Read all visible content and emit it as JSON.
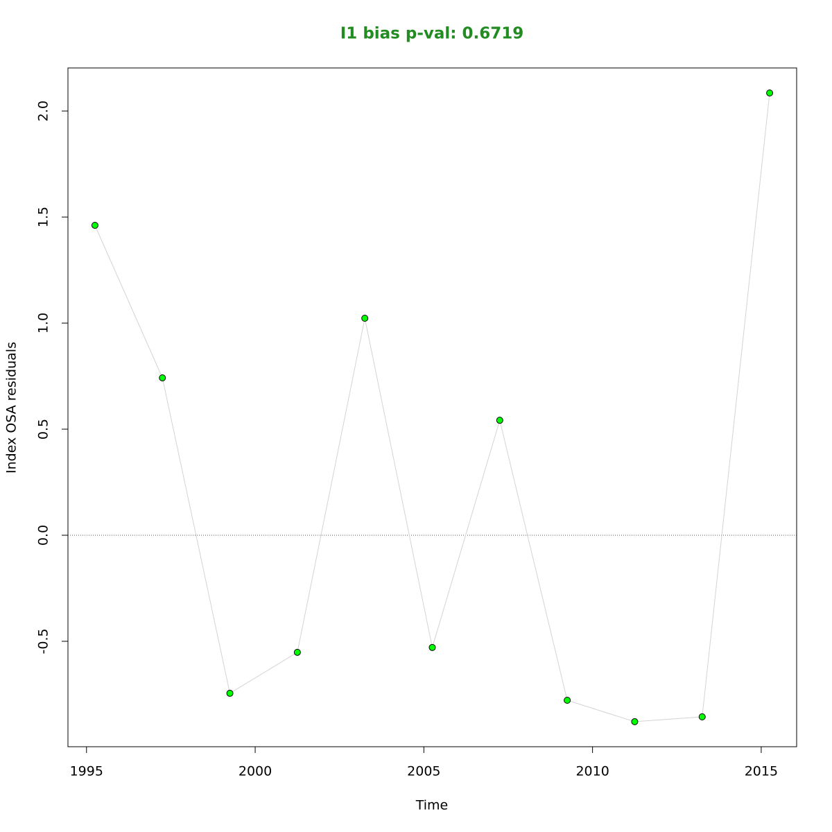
{
  "chart_data": {
    "type": "line",
    "title": "I1 bias p-val: 0.6719",
    "x_label": "Time",
    "y_label": "Index OSA residuals",
    "x": [
      1995.25,
      1997.25,
      1999.25,
      2001.25,
      2003.25,
      2005.25,
      2007.25,
      2009.25,
      2011.25,
      2013.25,
      2015.25
    ],
    "values": [
      1.461,
      0.742,
      -0.745,
      -0.552,
      1.023,
      -0.529,
      0.542,
      -0.778,
      -0.879,
      -0.856,
      2.085
    ],
    "line_color": "#d3d3d3",
    "point_color": "#00ff00",
    "title_color": "#228b22",
    "reference_line": 0,
    "xlim": [
      1994.45,
      2016.05
    ],
    "xticks": [
      1995,
      2000,
      2005,
      2010,
      2015
    ],
    "ylim": [
      -0.997,
      2.203
    ],
    "yticks": [
      -0.5,
      {
        "value": 0,
        "label": "0.0"
      },
      0.5,
      {
        "value": 1,
        "label": "1.0"
      },
      1.5,
      {
        "value": 2,
        "label": "2.0"
      }
    ]
  }
}
